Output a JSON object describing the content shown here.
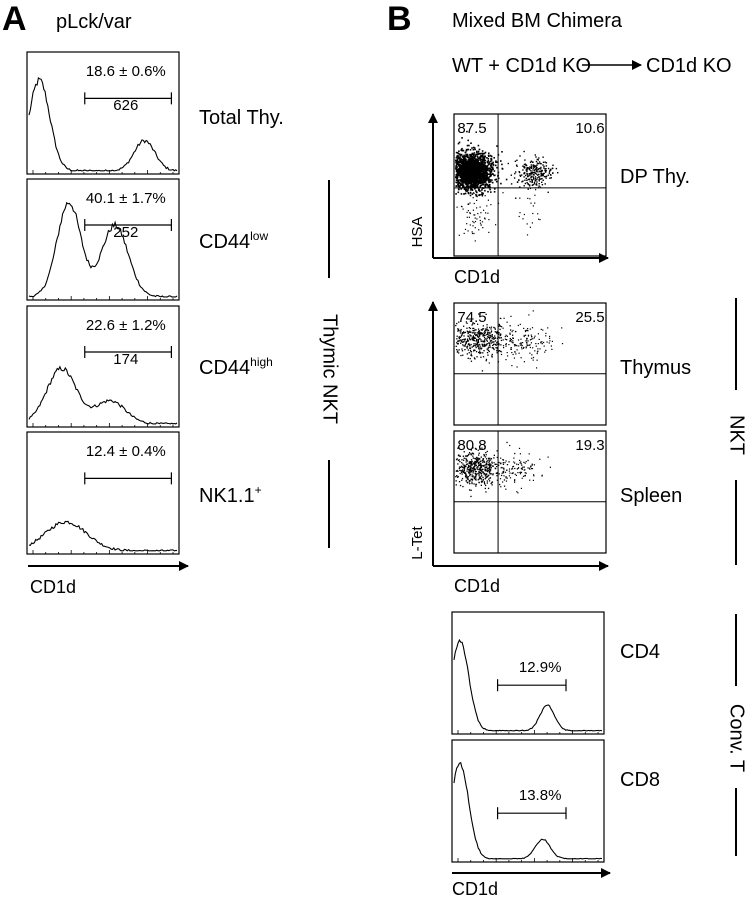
{
  "panel_a": {
    "letter": "A",
    "title": "pLck/var",
    "xlabel": "CD1d",
    "group_label": "Thymic NKT",
    "rows": [
      {
        "label": "Total Thy.",
        "sup": "",
        "stat": "18.6 ± 0.6%",
        "mfi": "626"
      },
      {
        "label": "CD44",
        "sup": "low",
        "stat": "40.1 ± 1.7%",
        "mfi": "252"
      },
      {
        "label": "CD44",
        "sup": "high",
        "stat": "22.6 ± 1.2%",
        "mfi": "174"
      },
      {
        "label": "NK1.1",
        "sup": "+",
        "stat": "12.4 ± 0.4%",
        "mfi": ""
      }
    ]
  },
  "panel_b": {
    "letter": "B",
    "title": "Mixed BM Chimera",
    "subtitle_left": "WT + CD1d KO",
    "subtitle_right": "CD1d KO",
    "dp": {
      "label": "DP Thy.",
      "xlabel": "CD1d",
      "ylabel": "HSA",
      "q_left": "87.5",
      "q_right": "10.6"
    },
    "nkt": {
      "group_label": "NKT",
      "xlabel": "CD1d",
      "ylabel": "L-Tet",
      "rows": [
        {
          "label": "Thymus",
          "q_left": "74.5",
          "q_right": "25.5"
        },
        {
          "label": "Spleen",
          "q_left": "80.8",
          "q_right": "19.3"
        }
      ]
    },
    "conv": {
      "group_label": "Conv. T",
      "xlabel": "CD1d",
      "rows": [
        {
          "label": "CD4",
          "stat": "12.9%"
        },
        {
          "label": "CD8",
          "stat": "13.8%"
        }
      ]
    }
  },
  "chart_data": [
    {
      "type": "area",
      "panel": "A",
      "title": "pLck/var",
      "xlabel": "CD1d",
      "series": [
        {
          "name": "Total Thy.",
          "gate_percent": 18.6,
          "gate_sem": 0.6,
          "mfi": 626,
          "peaks": [
            0.08,
            0.78
          ]
        },
        {
          "name": "CD44low",
          "gate_percent": 40.1,
          "gate_sem": 1.7,
          "mfi": 252,
          "peaks": [
            0.27,
            0.58
          ]
        },
        {
          "name": "CD44high",
          "gate_percent": 22.6,
          "gate_sem": 1.2,
          "mfi": 174,
          "peaks": [
            0.22,
            0.55
          ]
        },
        {
          "name": "NK1.1+",
          "gate_percent": 12.4,
          "gate_sem": 0.4,
          "peaks": [
            0.25
          ]
        }
      ]
    },
    {
      "type": "scatter",
      "panel": "B",
      "title": "DP Thy.",
      "xlabel": "CD1d",
      "ylabel": "HSA",
      "quadrants": {
        "upper_left": 87.5,
        "upper_right": 10.6
      }
    },
    {
      "type": "scatter",
      "panel": "B",
      "title": "Thymus",
      "xlabel": "CD1d",
      "ylabel": "L-Tet",
      "quadrants": {
        "upper_left": 74.5,
        "upper_right": 25.5
      }
    },
    {
      "type": "scatter",
      "panel": "B",
      "title": "Spleen",
      "xlabel": "CD1d",
      "ylabel": "L-Tet",
      "quadrants": {
        "upper_left": 80.8,
        "upper_right": 19.3
      }
    },
    {
      "type": "area",
      "panel": "B",
      "xlabel": "CD1d",
      "series": [
        {
          "name": "CD4",
          "gate_percent": 12.9,
          "peaks": [
            0.05,
            0.63
          ]
        },
        {
          "name": "CD8",
          "gate_percent": 13.8,
          "peaks": [
            0.05,
            0.6
          ]
        }
      ]
    }
  ]
}
